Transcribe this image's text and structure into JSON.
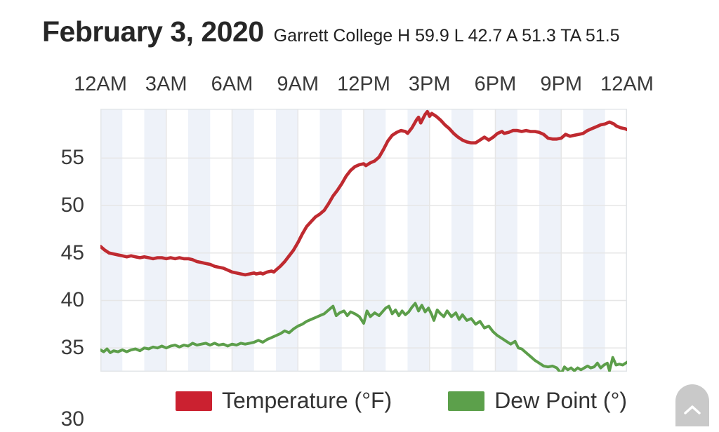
{
  "chart_data": {
    "type": "line",
    "title": "February 3, 2020",
    "subtitle": "Garrett College H 59.9 L 42.7 A 51.3 TA 51.5",
    "x_labels": [
      "12AM",
      "3AM",
      "6AM",
      "9AM",
      "12PM",
      "3PM",
      "6PM",
      "9PM",
      "12AM"
    ],
    "y_tick_labels": [
      "55",
      "50",
      "45",
      "40",
      "35"
    ],
    "partial_bottom_y_label": "30",
    "x_axis": {
      "unit": "hours",
      "min": 0,
      "max": 24,
      "gridline_every_hours": 3,
      "band_every_hours": 1,
      "labels_position": "top"
    },
    "y_axis": {
      "visible_min": 32.5,
      "visible_max": 60.2,
      "tick_step": 5
    },
    "grid": true,
    "legend_position": "bottom",
    "colors": {
      "band_stripe": "#eef2f9",
      "gridline": "#e6e6e6",
      "plot_border": "#e3e6e9",
      "axis_text": "#3a3a3a"
    },
    "series": [
      {
        "name": "Temperature (°F)",
        "color": "#bf2a30",
        "legend_color": "#cb2130",
        "points": [
          [
            0,
            45.7
          ],
          [
            0.2,
            45.3
          ],
          [
            0.4,
            45.0
          ],
          [
            0.6,
            44.9
          ],
          [
            0.8,
            44.8
          ],
          [
            1,
            44.7
          ],
          [
            1.2,
            44.6
          ],
          [
            1.4,
            44.7
          ],
          [
            1.6,
            44.6
          ],
          [
            1.8,
            44.5
          ],
          [
            2,
            44.6
          ],
          [
            2.2,
            44.5
          ],
          [
            2.4,
            44.4
          ],
          [
            2.6,
            44.5
          ],
          [
            2.8,
            44.5
          ],
          [
            3,
            44.4
          ],
          [
            3.2,
            44.5
          ],
          [
            3.4,
            44.4
          ],
          [
            3.6,
            44.5
          ],
          [
            3.8,
            44.4
          ],
          [
            4,
            44.4
          ],
          [
            4.2,
            44.3
          ],
          [
            4.4,
            44.1
          ],
          [
            4.6,
            44.0
          ],
          [
            4.8,
            43.9
          ],
          [
            5,
            43.8
          ],
          [
            5.2,
            43.6
          ],
          [
            5.4,
            43.5
          ],
          [
            5.6,
            43.4
          ],
          [
            5.8,
            43.2
          ],
          [
            6,
            43.0
          ],
          [
            6.2,
            42.9
          ],
          [
            6.4,
            42.8
          ],
          [
            6.6,
            42.7
          ],
          [
            6.8,
            42.8
          ],
          [
            7,
            42.9
          ],
          [
            7.1,
            42.8
          ],
          [
            7.3,
            42.9
          ],
          [
            7.4,
            42.8
          ],
          [
            7.6,
            43.0
          ],
          [
            7.8,
            43.1
          ],
          [
            7.9,
            43.0
          ],
          [
            8,
            43.2
          ],
          [
            8.2,
            43.6
          ],
          [
            8.4,
            44.1
          ],
          [
            8.6,
            44.7
          ],
          [
            8.8,
            45.3
          ],
          [
            9,
            46.1
          ],
          [
            9.2,
            47.0
          ],
          [
            9.4,
            47.8
          ],
          [
            9.6,
            48.3
          ],
          [
            9.8,
            48.8
          ],
          [
            10,
            49.1
          ],
          [
            10.2,
            49.5
          ],
          [
            10.4,
            50.2
          ],
          [
            10.6,
            51.0
          ],
          [
            10.8,
            51.6
          ],
          [
            11,
            52.3
          ],
          [
            11.2,
            53.1
          ],
          [
            11.4,
            53.7
          ],
          [
            11.6,
            54.1
          ],
          [
            11.8,
            54.3
          ],
          [
            12,
            54.4
          ],
          [
            12.1,
            54.2
          ],
          [
            12.3,
            54.5
          ],
          [
            12.5,
            54.7
          ],
          [
            12.7,
            55.1
          ],
          [
            12.9,
            55.9
          ],
          [
            13.1,
            56.8
          ],
          [
            13.3,
            57.4
          ],
          [
            13.5,
            57.7
          ],
          [
            13.7,
            57.9
          ],
          [
            13.9,
            57.8
          ],
          [
            14,
            57.6
          ],
          [
            14.2,
            58.2
          ],
          [
            14.4,
            59.0
          ],
          [
            14.5,
            59.3
          ],
          [
            14.6,
            58.7
          ],
          [
            14.8,
            59.6
          ],
          [
            14.9,
            59.9
          ],
          [
            15,
            59.4
          ],
          [
            15.1,
            59.7
          ],
          [
            15.3,
            59.4
          ],
          [
            15.5,
            59.0
          ],
          [
            15.7,
            58.5
          ],
          [
            15.9,
            58.1
          ],
          [
            16.1,
            57.6
          ],
          [
            16.3,
            57.2
          ],
          [
            16.5,
            56.9
          ],
          [
            16.7,
            56.7
          ],
          [
            16.9,
            56.6
          ],
          [
            17.1,
            56.6
          ],
          [
            17.3,
            56.9
          ],
          [
            17.5,
            57.2
          ],
          [
            17.7,
            56.9
          ],
          [
            17.9,
            57.2
          ],
          [
            18.1,
            57.6
          ],
          [
            18.3,
            57.8
          ],
          [
            18.4,
            57.6
          ],
          [
            18.6,
            57.7
          ],
          [
            18.8,
            57.9
          ],
          [
            19,
            57.9
          ],
          [
            19.2,
            57.8
          ],
          [
            19.4,
            57.9
          ],
          [
            19.6,
            57.8
          ],
          [
            19.8,
            57.8
          ],
          [
            20,
            57.7
          ],
          [
            20.2,
            57.5
          ],
          [
            20.4,
            57.1
          ],
          [
            20.6,
            57.0
          ],
          [
            20.8,
            57.0
          ],
          [
            21,
            57.1
          ],
          [
            21.2,
            57.5
          ],
          [
            21.4,
            57.3
          ],
          [
            21.6,
            57.4
          ],
          [
            21.8,
            57.5
          ],
          [
            22,
            57.6
          ],
          [
            22.2,
            57.9
          ],
          [
            22.4,
            58.1
          ],
          [
            22.6,
            58.3
          ],
          [
            22.8,
            58.5
          ],
          [
            23,
            58.6
          ],
          [
            23.2,
            58.8
          ],
          [
            23.4,
            58.6
          ],
          [
            23.5,
            58.4
          ],
          [
            23.7,
            58.2
          ],
          [
            23.9,
            58.1
          ],
          [
            24,
            58.0
          ]
        ]
      },
      {
        "name": "Dew Point (°)",
        "color": "#5c9e4a",
        "legend_color": "#5ca04b",
        "points": [
          [
            0,
            34.8
          ],
          [
            0.15,
            34.6
          ],
          [
            0.3,
            34.9
          ],
          [
            0.45,
            34.5
          ],
          [
            0.6,
            34.7
          ],
          [
            0.8,
            34.6
          ],
          [
            1,
            34.8
          ],
          [
            1.2,
            34.6
          ],
          [
            1.4,
            34.8
          ],
          [
            1.6,
            34.9
          ],
          [
            1.8,
            34.7
          ],
          [
            2,
            35.0
          ],
          [
            2.2,
            34.9
          ],
          [
            2.4,
            35.1
          ],
          [
            2.6,
            35.0
          ],
          [
            2.8,
            35.2
          ],
          [
            3,
            35.0
          ],
          [
            3.2,
            35.2
          ],
          [
            3.4,
            35.3
          ],
          [
            3.6,
            35.1
          ],
          [
            3.8,
            35.3
          ],
          [
            4,
            35.2
          ],
          [
            4.2,
            35.5
          ],
          [
            4.4,
            35.3
          ],
          [
            4.6,
            35.4
          ],
          [
            4.8,
            35.5
          ],
          [
            5,
            35.3
          ],
          [
            5.2,
            35.5
          ],
          [
            5.4,
            35.3
          ],
          [
            5.6,
            35.4
          ],
          [
            5.8,
            35.2
          ],
          [
            6,
            35.4
          ],
          [
            6.2,
            35.3
          ],
          [
            6.4,
            35.5
          ],
          [
            6.6,
            35.4
          ],
          [
            6.8,
            35.5
          ],
          [
            7,
            35.6
          ],
          [
            7.2,
            35.8
          ],
          [
            7.4,
            35.6
          ],
          [
            7.6,
            35.9
          ],
          [
            7.8,
            36.1
          ],
          [
            8,
            36.3
          ],
          [
            8.2,
            36.5
          ],
          [
            8.4,
            36.8
          ],
          [
            8.6,
            36.6
          ],
          [
            8.8,
            37.0
          ],
          [
            9,
            37.3
          ],
          [
            9.2,
            37.5
          ],
          [
            9.4,
            37.8
          ],
          [
            9.6,
            38.0
          ],
          [
            9.8,
            38.2
          ],
          [
            10,
            38.4
          ],
          [
            10.2,
            38.6
          ],
          [
            10.4,
            39.0
          ],
          [
            10.6,
            39.4
          ],
          [
            10.75,
            38.4
          ],
          [
            10.9,
            38.7
          ],
          [
            11.1,
            38.9
          ],
          [
            11.25,
            38.4
          ],
          [
            11.4,
            38.8
          ],
          [
            11.6,
            38.6
          ],
          [
            11.8,
            38.3
          ],
          [
            12,
            37.6
          ],
          [
            12.15,
            38.9
          ],
          [
            12.3,
            38.3
          ],
          [
            12.5,
            38.7
          ],
          [
            12.7,
            38.4
          ],
          [
            12.85,
            38.8
          ],
          [
            13,
            39.2
          ],
          [
            13.15,
            39.4
          ],
          [
            13.3,
            38.6
          ],
          [
            13.45,
            39.0
          ],
          [
            13.6,
            38.4
          ],
          [
            13.75,
            38.9
          ],
          [
            13.9,
            38.5
          ],
          [
            14.05,
            38.8
          ],
          [
            14.2,
            39.3
          ],
          [
            14.35,
            39.7
          ],
          [
            14.5,
            38.9
          ],
          [
            14.65,
            39.5
          ],
          [
            14.8,
            38.8
          ],
          [
            14.95,
            39.2
          ],
          [
            15.1,
            38.5
          ],
          [
            15.2,
            37.9
          ],
          [
            15.35,
            39.0
          ],
          [
            15.5,
            38.6
          ],
          [
            15.65,
            38.3
          ],
          [
            15.8,
            38.9
          ],
          [
            16,
            38.3
          ],
          [
            16.2,
            38.7
          ],
          [
            16.35,
            38.0
          ],
          [
            16.5,
            38.5
          ],
          [
            16.7,
            37.9
          ],
          [
            16.9,
            38.1
          ],
          [
            17.1,
            37.5
          ],
          [
            17.3,
            37.8
          ],
          [
            17.5,
            37.1
          ],
          [
            17.7,
            37.3
          ],
          [
            17.9,
            36.7
          ],
          [
            18.1,
            36.3
          ],
          [
            18.3,
            36.0
          ],
          [
            18.5,
            35.7
          ],
          [
            18.7,
            35.4
          ],
          [
            18.9,
            35.7
          ],
          [
            19.05,
            35.0
          ],
          [
            19.2,
            34.9
          ],
          [
            19.4,
            34.5
          ],
          [
            19.6,
            34.1
          ],
          [
            19.8,
            33.7
          ],
          [
            20,
            33.4
          ],
          [
            20.2,
            33.1
          ],
          [
            20.4,
            33.0
          ],
          [
            20.6,
            33.1
          ],
          [
            20.8,
            32.9
          ],
          [
            21,
            32.3
          ],
          [
            21.15,
            33.0
          ],
          [
            21.3,
            32.7
          ],
          [
            21.45,
            32.9
          ],
          [
            21.6,
            32.6
          ],
          [
            21.75,
            32.9
          ],
          [
            21.9,
            32.7
          ],
          [
            22.05,
            32.9
          ],
          [
            22.2,
            33.1
          ],
          [
            22.35,
            32.9
          ],
          [
            22.5,
            33.0
          ],
          [
            22.65,
            33.4
          ],
          [
            22.8,
            32.9
          ],
          [
            22.95,
            33.2
          ],
          [
            23.1,
            33.4
          ],
          [
            23.2,
            32.6
          ],
          [
            23.35,
            34.0
          ],
          [
            23.5,
            33.2
          ],
          [
            23.65,
            33.3
          ],
          [
            23.8,
            33.2
          ],
          [
            24,
            33.5
          ]
        ]
      }
    ]
  },
  "scroll_top_button": {
    "icon": "chevron-up",
    "background": "#c9c9c9"
  }
}
